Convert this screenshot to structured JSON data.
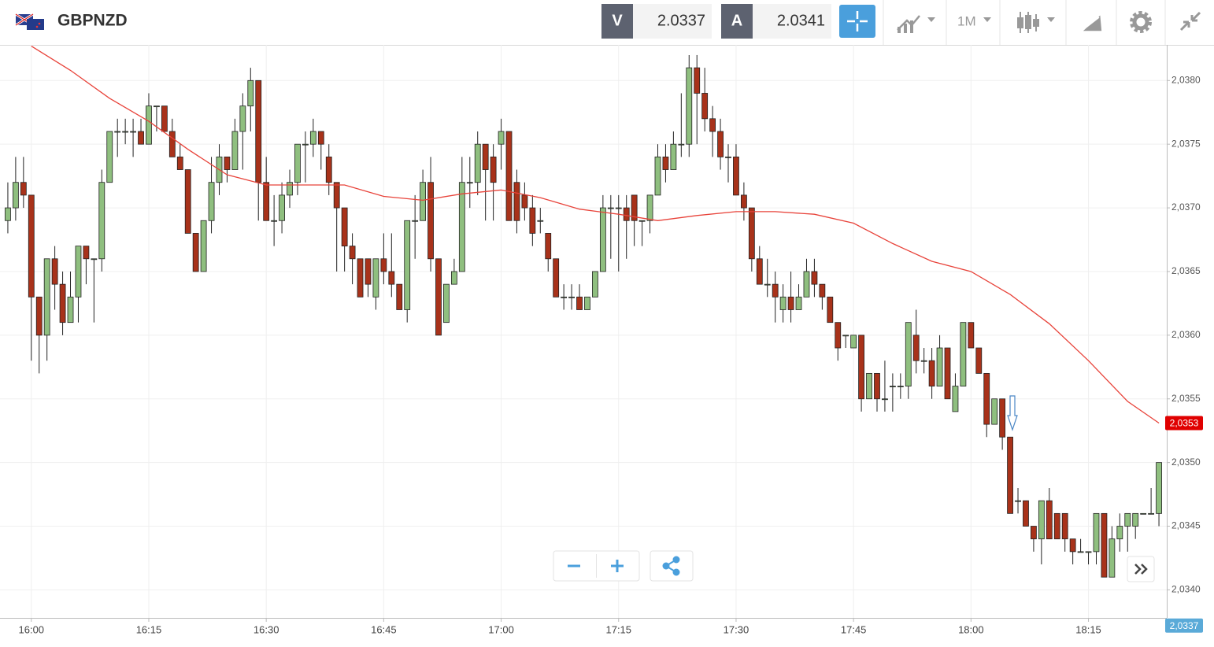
{
  "toolbar": {
    "symbol": "GBPNZD",
    "bid_label": "V",
    "bid": "2.0337",
    "ask_label": "A",
    "ask": "2.0341",
    "timeframe": "1M"
  },
  "chart_data": {
    "type": "candlestick",
    "x": [
      "15:57",
      "15:58",
      "15:59",
      "16:00",
      "16:01",
      "16:02",
      "16:03",
      "16:04",
      "16:05",
      "16:06",
      "16:07",
      "16:08",
      "16:09",
      "16:10",
      "16:11",
      "16:12",
      "16:13",
      "16:14",
      "16:15",
      "16:16",
      "16:17",
      "16:18",
      "16:19",
      "16:20",
      "16:21",
      "16:22",
      "16:23",
      "16:24",
      "16:25",
      "16:26",
      "16:27",
      "16:28",
      "16:29",
      "16:30",
      "16:31",
      "16:32",
      "16:33",
      "16:34",
      "16:35",
      "16:36",
      "16:37",
      "16:38",
      "16:39",
      "16:40",
      "16:41",
      "16:42",
      "16:43",
      "16:44",
      "16:45",
      "16:46",
      "16:47",
      "16:48",
      "16:49",
      "16:50",
      "16:51",
      "16:52",
      "16:53",
      "16:54",
      "16:55",
      "16:56",
      "16:57",
      "16:58",
      "16:59",
      "17:00",
      "17:01",
      "17:02",
      "17:03",
      "17:04",
      "17:05",
      "17:06",
      "17:07",
      "17:08",
      "17:09",
      "17:10",
      "17:11",
      "17:12",
      "17:13",
      "17:14",
      "17:15",
      "17:16",
      "17:17",
      "17:18",
      "17:19",
      "17:20",
      "17:21",
      "17:22",
      "17:23",
      "17:24",
      "17:25",
      "17:26",
      "17:27",
      "17:28",
      "17:29",
      "17:30",
      "17:31",
      "17:32",
      "17:33",
      "17:34",
      "17:35",
      "17:36",
      "17:37",
      "17:38",
      "17:39",
      "17:40",
      "17:41",
      "17:42",
      "17:43",
      "17:44",
      "17:45",
      "17:46",
      "17:47",
      "17:48",
      "17:49",
      "17:50",
      "17:51",
      "17:52",
      "17:53",
      "17:54",
      "17:55",
      "17:56",
      "17:57",
      "17:58",
      "17:59",
      "18:00",
      "18:01",
      "18:02",
      "18:03",
      "18:04",
      "18:05",
      "18:06",
      "18:07",
      "18:08",
      "18:09",
      "18:10",
      "18:11",
      "18:12",
      "18:13",
      "18:14",
      "18:15",
      "18:16",
      "18:17",
      "18:18",
      "18:19",
      "18:20",
      "18:21",
      "18:22",
      "18:23",
      "18:24"
    ],
    "open": [
      2.0369,
      2.037,
      2.0372,
      2.0371,
      2.0363,
      2.036,
      2.0366,
      2.0364,
      2.0361,
      2.0363,
      2.0367,
      2.0366,
      2.0366,
      2.0372,
      2.0376,
      2.0376,
      2.0376,
      2.0376,
      2.0375,
      2.0378,
      2.0378,
      2.0376,
      2.0374,
      2.0373,
      2.0368,
      2.0365,
      2.0369,
      2.0372,
      2.0374,
      2.0373,
      2.0376,
      2.0378,
      2.038,
      2.0372,
      2.0369,
      2.0369,
      2.0371,
      2.0372,
      2.0375,
      2.0375,
      2.0376,
      2.0374,
      2.0372,
      2.037,
      2.0367,
      2.0366,
      2.0366,
      2.0363,
      2.0366,
      2.0365,
      2.0364,
      2.0362,
      2.0369,
      2.0369,
      2.0372,
      2.0366,
      2.0361,
      2.0364,
      2.0365,
      2.0372,
      2.0372,
      2.0375,
      2.0374,
      2.0375,
      2.0376,
      2.0372,
      2.0371,
      2.037,
      2.0369,
      2.0368,
      2.0366,
      2.0363,
      2.0363,
      2.0363,
      2.0362,
      2.0363,
      2.0365,
      2.037,
      2.037,
      2.037,
      2.0371,
      2.0369,
      2.0369,
      2.0371,
      2.0374,
      2.0373,
      2.0375,
      2.0375,
      2.0381,
      2.0379,
      2.0377,
      2.0376,
      2.0374,
      2.0374,
      2.0371,
      2.037,
      2.0366,
      2.0364,
      2.0364,
      2.0362,
      2.0363,
      2.0362,
      2.0363,
      2.0365,
      2.0364,
      2.0363,
      2.0361,
      2.036,
      2.0359,
      2.036,
      2.0355,
      2.0357,
      2.0355,
      2.0356,
      2.0356,
      2.0356,
      2.036,
      2.0358,
      2.0358,
      2.0356,
      2.0359,
      2.0354,
      2.0356,
      2.0361,
      2.0359,
      2.0357,
      2.0353,
      2.0355,
      2.0352,
      2.0347,
      2.0347,
      2.0345,
      2.0344,
      2.0347,
      2.0346,
      2.0346,
      2.0344,
      2.0343,
      2.0343,
      2.0343,
      2.0346,
      2.0341,
      2.0344,
      2.0345,
      2.0345,
      2.0346,
      2.0346,
      2.0346
    ],
    "high": [
      2.0372,
      2.0374,
      2.0374,
      2.0371,
      2.0363,
      2.0366,
      2.0367,
      2.0365,
      2.0365,
      2.0367,
      2.0367,
      2.0366,
      2.0373,
      2.0376,
      2.0377,
      2.0377,
      2.0377,
      2.0377,
      2.0379,
      2.0378,
      2.0378,
      2.0377,
      2.0375,
      2.0373,
      2.0368,
      2.0369,
      2.0374,
      2.0375,
      2.0374,
      2.0377,
      2.0379,
      2.0381,
      2.038,
      2.0374,
      2.0371,
      2.0372,
      2.0373,
      2.0375,
      2.0376,
      2.0377,
      2.0376,
      2.0375,
      2.0372,
      2.037,
      2.0368,
      2.0366,
      2.0366,
      2.0366,
      2.0368,
      2.0368,
      2.0364,
      2.0369,
      2.0371,
      2.0373,
      2.0374,
      2.0366,
      2.0364,
      2.0366,
      2.0374,
      2.0374,
      2.0376,
      2.0375,
      2.0375,
      2.0377,
      2.0376,
      2.0373,
      2.0372,
      2.0371,
      2.037,
      2.0368,
      2.0366,
      2.0364,
      2.0364,
      2.0364,
      2.0363,
      2.0365,
      2.0371,
      2.0371,
      2.0371,
      2.0371,
      2.0371,
      2.0369,
      2.0371,
      2.0375,
      2.0375,
      2.0376,
      2.0379,
      2.0382,
      2.0382,
      2.0381,
      2.0378,
      2.0377,
      2.0375,
      2.0375,
      2.0372,
      2.037,
      2.0367,
      2.0366,
      2.0365,
      2.0364,
      2.0365,
      2.0364,
      2.0366,
      2.0366,
      2.0364,
      2.0363,
      2.0361,
      2.036,
      2.036,
      2.036,
      2.0357,
      2.0357,
      2.0358,
      2.0357,
      2.0357,
      2.0361,
      2.0362,
      2.0359,
      2.0359,
      2.036,
      2.0359,
      2.0357,
      2.0361,
      2.0361,
      2.0359,
      2.0357,
      2.0355,
      2.0355,
      2.0352,
      2.0348,
      2.0347,
      2.0345,
      2.0347,
      2.0348,
      2.0346,
      2.0346,
      2.0344,
      2.0344,
      2.0343,
      2.0346,
      2.0346,
      2.0345,
      2.0346,
      2.0346,
      2.0346,
      2.0346,
      2.0348,
      2.035
    ],
    "low": [
      2.0368,
      2.0369,
      2.037,
      2.0358,
      2.0357,
      2.0358,
      2.0362,
      2.036,
      2.0361,
      2.0361,
      2.0364,
      2.0361,
      2.0365,
      2.0372,
      2.0374,
      2.0375,
      2.0374,
      2.0375,
      2.0375,
      2.0376,
      2.0376,
      2.0374,
      2.0373,
      2.0368,
      2.0365,
      2.0365,
      2.0368,
      2.0371,
      2.0372,
      2.0373,
      2.0373,
      2.0376,
      2.0369,
      2.0369,
      2.0367,
      2.0368,
      2.037,
      2.0371,
      2.0372,
      2.0374,
      2.0373,
      2.0371,
      2.0365,
      2.0365,
      2.0364,
      2.0363,
      2.0363,
      2.0362,
      2.0364,
      2.0363,
      2.0362,
      2.0361,
      2.0366,
      2.0369,
      2.0365,
      2.036,
      2.0361,
      2.0364,
      2.0365,
      2.037,
      2.0371,
      2.0369,
      2.0369,
      2.0373,
      2.0369,
      2.0368,
      2.0369,
      2.0367,
      2.0368,
      2.0365,
      2.0363,
      2.0362,
      2.0362,
      2.0362,
      2.0362,
      2.0363,
      2.0365,
      2.0366,
      2.0365,
      2.0366,
      2.0367,
      2.0367,
      2.0368,
      2.0371,
      2.0372,
      2.0373,
      2.0374,
      2.0374,
      2.0375,
      2.0376,
      2.0374,
      2.0373,
      2.0372,
      2.0371,
      2.0369,
      2.0365,
      2.0364,
      2.0363,
      2.0361,
      2.0361,
      2.0361,
      2.0362,
      2.0363,
      2.0363,
      2.0362,
      2.0361,
      2.0358,
      2.0359,
      2.0359,
      2.0354,
      2.0355,
      2.0354,
      2.0354,
      2.0354,
      2.0355,
      2.0355,
      2.0357,
      2.0357,
      2.0355,
      2.0356,
      2.0355,
      2.0354,
      2.0356,
      2.0359,
      2.0357,
      2.0352,
      2.0353,
      2.0351,
      2.0346,
      2.0346,
      2.0345,
      2.0343,
      2.0342,
      2.0344,
      2.0344,
      2.0343,
      2.0342,
      2.0343,
      2.0342,
      2.0342,
      2.0341,
      2.0341,
      2.0343,
      2.0343,
      2.0344,
      2.0346,
      2.0346,
      2.0345
    ],
    "close": [
      2.037,
      2.0372,
      2.0371,
      2.0363,
      2.036,
      2.0366,
      2.0364,
      2.0361,
      2.0363,
      2.0367,
      2.0366,
      2.0366,
      2.0372,
      2.0376,
      2.0376,
      2.0376,
      2.0376,
      2.0375,
      2.0378,
      2.0378,
      2.0376,
      2.0374,
      2.0373,
      2.0368,
      2.0365,
      2.0369,
      2.0372,
      2.0374,
      2.0373,
      2.0376,
      2.0378,
      2.038,
      2.0372,
      2.0369,
      2.0369,
      2.0371,
      2.0372,
      2.0375,
      2.0375,
      2.0376,
      2.0375,
      2.0372,
      2.037,
      2.0367,
      2.0366,
      2.0363,
      2.0364,
      2.0366,
      2.0365,
      2.0364,
      2.0362,
      2.0369,
      2.0369,
      2.0372,
      2.0366,
      2.036,
      2.0364,
      2.0365,
      2.0372,
      2.0372,
      2.0375,
      2.0373,
      2.0372,
      2.0376,
      2.0369,
      2.0369,
      2.037,
      2.0368,
      2.0369,
      2.0366,
      2.0363,
      2.0363,
      2.0363,
      2.0362,
      2.0363,
      2.0365,
      2.037,
      2.037,
      2.037,
      2.0369,
      2.0369,
      2.0369,
      2.0371,
      2.0374,
      2.0373,
      2.0375,
      2.0375,
      2.0381,
      2.0379,
      2.0377,
      2.0376,
      2.0374,
      2.0374,
      2.0371,
      2.037,
      2.0366,
      2.0364,
      2.0364,
      2.0363,
      2.0363,
      2.0362,
      2.0363,
      2.0365,
      2.0364,
      2.0363,
      2.0361,
      2.0359,
      2.036,
      2.036,
      2.0355,
      2.0357,
      2.0355,
      2.0355,
      2.0356,
      2.0356,
      2.0361,
      2.0358,
      2.0358,
      2.0356,
      2.0359,
      2.0355,
      2.0356,
      2.0361,
      2.0359,
      2.0357,
      2.0353,
      2.0355,
      2.0352,
      2.0346,
      2.0347,
      2.0345,
      2.0344,
      2.0347,
      2.0344,
      2.0344,
      2.0344,
      2.0343,
      2.0343,
      2.0343,
      2.0346,
      2.0341,
      2.0344,
      2.0345,
      2.0346,
      2.0346,
      2.0346,
      2.0346,
      2.035
    ],
    "up_color": "#8fbf7f",
    "down_color": "#a8321a",
    "ma": {
      "color": "#e8433a",
      "x": [
        "16:00",
        "16:05",
        "16:10",
        "16:15",
        "16:20",
        "16:25",
        "16:30",
        "16:35",
        "16:40",
        "16:45",
        "16:50",
        "16:55",
        "17:00",
        "17:05",
        "17:10",
        "17:15",
        "17:20",
        "17:25",
        "17:30",
        "17:35",
        "17:40",
        "17:45",
        "17:50",
        "17:55",
        "18:00",
        "18:05",
        "18:10",
        "18:15",
        "18:20",
        "18:24"
      ],
      "values": [
        2.03827,
        2.03808,
        2.03786,
        2.03768,
        2.03746,
        2.03726,
        2.03718,
        2.03718,
        2.03718,
        2.03709,
        2.03706,
        2.03711,
        2.03714,
        2.03708,
        2.03699,
        2.03695,
        2.0369,
        2.03694,
        2.03697,
        2.03697,
        2.03695,
        2.03688,
        2.03672,
        2.03658,
        2.0365,
        2.03632,
        2.03609,
        2.0358,
        2.03548,
        2.03531
      ]
    },
    "xlim": [
      "15:56",
      "18:25"
    ],
    "xticks": [
      "16:00",
      "16:15",
      "16:30",
      "16:45",
      "17:00",
      "17:15",
      "17:30",
      "17:45",
      "18:00",
      "18:15"
    ],
    "ylim": [
      2.03378,
      2.03828
    ],
    "yticks": [
      {
        "value": 2.034,
        "label": "2,0340"
      },
      {
        "value": 2.0345,
        "label": "2,0345"
      },
      {
        "value": 2.035,
        "label": "2,0350"
      },
      {
        "value": 2.0355,
        "label": "2,0355"
      },
      {
        "value": 2.036,
        "label": "2,0360"
      },
      {
        "value": 2.0365,
        "label": "2,0365"
      },
      {
        "value": 2.037,
        "label": "2,0370"
      },
      {
        "value": 2.0375,
        "label": "2,0375"
      },
      {
        "value": 2.038,
        "label": "2,0380"
      }
    ],
    "price_labels": [
      {
        "value": 2.03531,
        "label": "2,0353",
        "color": "#e00000"
      },
      {
        "value": 2.03372,
        "label": "2,0337",
        "color": "#5aaad8"
      }
    ],
    "grid": true
  }
}
